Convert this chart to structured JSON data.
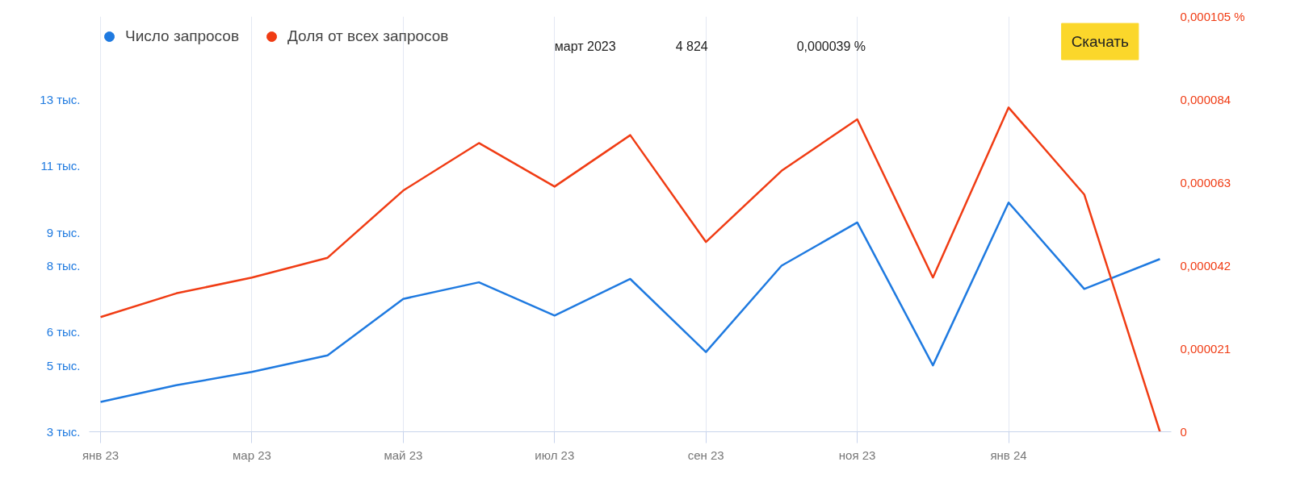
{
  "chart_data": {
    "type": "line",
    "categories": [
      "янв 23",
      null,
      "мар 23",
      null,
      "май 23",
      null,
      "июл 23",
      null,
      "сен 23",
      null,
      "ноя 23",
      null,
      "янв 24",
      null,
      null
    ],
    "series": [
      {
        "name": "Число запросов",
        "color": "#1f7ae0",
        "values": [
          3.9,
          4.4,
          4.8,
          5.3,
          7.0,
          7.5,
          6.5,
          7.6,
          5.4,
          8.0,
          9.3,
          5.0,
          9.9,
          7.3,
          8.2
        ]
      },
      {
        "name": "Доля от всех запросов",
        "color": "#f03c14",
        "axis": "y2",
        "values": [
          2.9e-05,
          3.5e-05,
          3.9e-05,
          4.4e-05,
          6.1e-05,
          7.3e-05,
          6.2e-05,
          7.5e-05,
          4.8e-05,
          6.6e-05,
          7.9e-05,
          3.9e-05,
          8.2e-05,
          6e-05,
          0
        ]
      }
    ],
    "ylim": [
      3,
      13
    ],
    "yticks": [
      {
        "value": 3,
        "label": "3 тыс."
      },
      {
        "value": 5,
        "label": "5 тыс."
      },
      {
        "value": 6,
        "label": "6 тыс."
      },
      {
        "value": 8,
        "label": "8 тыс."
      },
      {
        "value": 9,
        "label": "9 тыс."
      },
      {
        "value": 11,
        "label": "11 тыс."
      },
      {
        "value": 13,
        "label": "13 тыс."
      }
    ],
    "y2lim": [
      0,
      0.000105
    ],
    "y2ticks": [
      {
        "value": 0,
        "label": "0"
      },
      {
        "value": 2.1e-05,
        "label": "0,000021"
      },
      {
        "value": 4.2e-05,
        "label": "0,000042"
      },
      {
        "value": 6.3e-05,
        "label": "0,000063"
      },
      {
        "value": 8.4e-05,
        "label": "0,000084"
      },
      {
        "value": 0.000105,
        "label": "0,000105 %"
      }
    ],
    "annotations": [
      "март 2023",
      "4 824",
      "0,000039 %",
      "Скачать"
    ],
    "grid": "x",
    "legend": "top left",
    "marker": "none",
    "line_style": "solid"
  }
}
